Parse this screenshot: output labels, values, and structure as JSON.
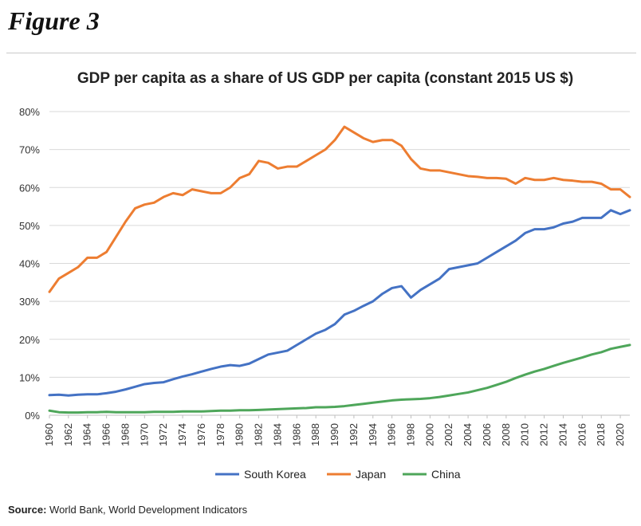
{
  "figure_label": "Figure 3",
  "source": {
    "label": "Source",
    "sep": ":",
    "text": "World Bank, World Development Indicators"
  },
  "chart_data": {
    "type": "line",
    "title": "GDP per capita as a share of US GDP per capita (constant 2015 US $)",
    "xlabel": "",
    "ylabel": "",
    "ylim": [
      0,
      80
    ],
    "y_ticks": [
      "0%",
      "10%",
      "20%",
      "30%",
      "40%",
      "50%",
      "60%",
      "70%",
      "80%"
    ],
    "x_start": 1960,
    "x_end": 2021,
    "x_ticks": [
      "1960",
      "1962",
      "1964",
      "1966",
      "1968",
      "1970",
      "1972",
      "1974",
      "1976",
      "1978",
      "1980",
      "1982",
      "1984",
      "1986",
      "1988",
      "1990",
      "1992",
      "1994",
      "1996",
      "1998",
      "2000",
      "2002",
      "2004",
      "2006",
      "2008",
      "2010",
      "2012",
      "2014",
      "2016",
      "2018",
      "2020"
    ],
    "legend_position": "bottom",
    "series": [
      {
        "name": "South Korea",
        "color": "#4472C4",
        "values": [
          5.3,
          5.4,
          5.2,
          5.4,
          5.5,
          5.5,
          5.8,
          6.2,
          6.8,
          7.5,
          8.2,
          8.5,
          8.7,
          9.5,
          10.2,
          10.8,
          11.5,
          12.2,
          12.8,
          13.2,
          13.0,
          13.6,
          14.8,
          16.0,
          16.5,
          17.0,
          18.5,
          20.0,
          21.5,
          22.5,
          24.0,
          26.5,
          27.5,
          28.8,
          30.0,
          32.0,
          33.5,
          34.0,
          31.0,
          33.0,
          34.5,
          36.0,
          38.5,
          39.0,
          39.5,
          40.0,
          41.5,
          43.0,
          44.5,
          46.0,
          48.0,
          49.0,
          49.0,
          49.5,
          50.5,
          51.0,
          52.0,
          52.0,
          52.0,
          54.0,
          53.0,
          54.0
        ]
      },
      {
        "name": "Japan",
        "color": "#ED7D31",
        "values": [
          32.5,
          36.0,
          37.5,
          39.0,
          41.5,
          41.5,
          43.0,
          47.0,
          51.0,
          54.5,
          55.5,
          56.0,
          57.5,
          58.5,
          58.0,
          59.5,
          59.0,
          58.5,
          58.5,
          60.0,
          62.5,
          63.5,
          67.0,
          66.5,
          65.0,
          65.5,
          65.5,
          67.0,
          68.5,
          70.0,
          72.5,
          76.0,
          74.5,
          73.0,
          72.0,
          72.5,
          72.5,
          71.0,
          67.5,
          65.0,
          64.5,
          64.5,
          64.0,
          63.5,
          63.0,
          62.8,
          62.5,
          62.5,
          62.3,
          61.0,
          62.5,
          62.0,
          62.0,
          62.5,
          62.0,
          61.8,
          61.5,
          61.5,
          61.0,
          59.5,
          59.5,
          57.5
        ]
      },
      {
        "name": "China",
        "color": "#4EA65A",
        "values": [
          1.2,
          0.8,
          0.7,
          0.7,
          0.8,
          0.8,
          0.9,
          0.8,
          0.8,
          0.8,
          0.8,
          0.9,
          0.9,
          0.9,
          1.0,
          1.0,
          1.0,
          1.1,
          1.2,
          1.2,
          1.3,
          1.3,
          1.4,
          1.5,
          1.6,
          1.7,
          1.8,
          1.9,
          2.1,
          2.1,
          2.2,
          2.4,
          2.7,
          3.0,
          3.3,
          3.6,
          3.9,
          4.1,
          4.2,
          4.3,
          4.5,
          4.8,
          5.2,
          5.6,
          6.0,
          6.6,
          7.2,
          8.0,
          8.8,
          9.8,
          10.7,
          11.5,
          12.2,
          13.0,
          13.8,
          14.5,
          15.2,
          16.0,
          16.6,
          17.5,
          18.0,
          18.5
        ]
      }
    ]
  }
}
